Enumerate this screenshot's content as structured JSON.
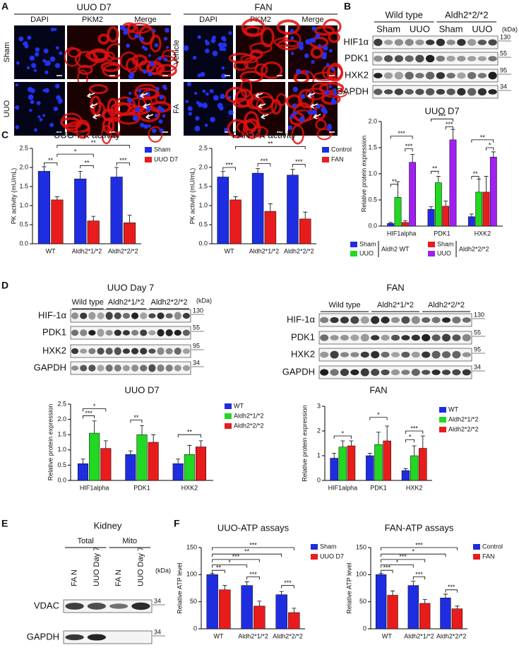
{
  "panel_labels": [
    "A",
    "B",
    "C",
    "D",
    "E",
    "F"
  ],
  "images": [
    {
      "title": "UUO D7",
      "columns": [
        "DAPI",
        "PKM2",
        "Merge"
      ],
      "rows": [
        "Sham",
        "UUO"
      ]
    },
    {
      "title": "FAN",
      "columns": [
        "DAPI",
        "PKM2",
        "Merge"
      ],
      "rows": [
        "Vehicle",
        "FA"
      ]
    }
  ],
  "blots": [
    {
      "groups": [
        {
          "name": "Wild type",
          "lanes": [
            "Sham",
            "UUO"
          ]
        },
        {
          "name": "Aldh2*2/*2",
          "lanes": [
            "Sham",
            "UUO"
          ]
        }
      ],
      "unit": "(kDa)",
      "rows": [
        {
          "label": "HIF1α",
          "kda": 130
        },
        {
          "label": "PDK1",
          "kda": 55
        },
        {
          "label": "HXK2",
          "kda": 95
        },
        {
          "label": "GAPDH",
          "kda": 34
        }
      ]
    },
    {
      "title": "UUO Day 7",
      "groups": [
        {
          "name": "Wild type"
        },
        {
          "name": "Aldh2*1/*2"
        },
        {
          "name": "Aldh2*2/*2"
        }
      ],
      "unit": "(kDa)",
      "rows": [
        {
          "label": "HIF-1α",
          "kda": 130
        },
        {
          "label": "PDK1",
          "kda": 55
        },
        {
          "label": "HXK2",
          "kda": 95
        },
        {
          "label": "GAPDH",
          "kda": 34
        }
      ]
    },
    {
      "title": "FAN",
      "groups": [
        {
          "name": "Wild type"
        },
        {
          "name": "Aldh2*1/*2"
        },
        {
          "name": "Aldh2*2/*2"
        }
      ],
      "rows": [
        {
          "label": "HIF-1α",
          "kda": 130
        },
        {
          "label": "PDK1",
          "kda": 55
        },
        {
          "label": "HXK2",
          "kda": 95
        },
        {
          "label": "GAPDH",
          "kda": 34
        }
      ]
    },
    {
      "title": "Kidney",
      "groups": [
        {
          "name": "Total",
          "lanes": [
            "FA N",
            "UUO Day 7"
          ]
        },
        {
          "name": "Mito",
          "lanes": [
            "FA N",
            "UUO Day 7"
          ]
        }
      ],
      "unit": "(kDa)",
      "rows": [
        {
          "label": "VDAC",
          "kda": 34
        },
        {
          "label": "GAPDH",
          "kda": 34
        }
      ]
    }
  ],
  "chart_data": [
    {
      "type": "bar",
      "title": "UUO D7",
      "y_label": "Relative protein expression",
      "categories": [
        "HIF1alpha",
        "PDK1",
        "HXK2"
      ],
      "series": [
        {
          "name": "Sham",
          "color": "#1f2de0",
          "values": [
            0.05,
            0.32,
            0.18
          ],
          "errors": [
            0.02,
            0.05,
            0.05
          ]
        },
        {
          "name": "UUO",
          "color": "#22d822",
          "values": [
            0.55,
            0.83,
            0.65
          ],
          "errors": [
            0.3,
            0.12,
            0.25
          ]
        },
        {
          "name": "Sham",
          "color": "#e81c1c",
          "values": [
            0.07,
            0.38,
            0.65
          ],
          "errors": [
            0.03,
            0.1,
            0.3
          ]
        },
        {
          "name": "UUO",
          "color": "#a020f0",
          "values": [
            1.22,
            1.65,
            1.32
          ],
          "errors": [
            0.15,
            0.2,
            0.1
          ]
        }
      ],
      "legend_groups": [
        "Aldh2 WT",
        "Aldh2*2/*2"
      ],
      "ylim": [
        0,
        2
      ],
      "yticks": [
        {
          "value": 0,
          "label": "0.0"
        },
        {
          "value": 0.5,
          "label": "0.5"
        },
        {
          "value": 1,
          "label": "1.0"
        },
        {
          "value": 1.5,
          "label": "1.5"
        },
        {
          "value": 2,
          "label": "2.0"
        }
      ],
      "significance": [
        "**",
        "***",
        "***",
        "**",
        "***",
        "***",
        "**",
        "**",
        "*"
      ]
    },
    {
      "type": "bar",
      "title": "UUO-PK activity",
      "y_label": "PK activity (mU/mL)",
      "categories": [
        "WT",
        "Aldh2*1/*2",
        "Aldh2*2/*2"
      ],
      "series": [
        {
          "name": "Sham",
          "color": "#1f2de0",
          "values": [
            1.9,
            1.7,
            1.75
          ],
          "errors": [
            0.12,
            0.2,
            0.25
          ]
        },
        {
          "name": "UUO D7",
          "color": "#e81c1c",
          "values": [
            1.15,
            0.6,
            0.55
          ],
          "errors": [
            0.08,
            0.12,
            0.2
          ]
        }
      ],
      "ylim": [
        0,
        2.5
      ],
      "yticks": [
        {
          "value": 0,
          "label": "0.0"
        },
        {
          "value": 0.5,
          "label": "0.5"
        },
        {
          "value": 1,
          "label": "1.0"
        },
        {
          "value": 1.5,
          "label": "1.5"
        },
        {
          "value": 2,
          "label": "2.0"
        },
        {
          "value": 2.5,
          "label": "2.5"
        }
      ],
      "significance": [
        "**",
        "*",
        "**",
        "**",
        "***"
      ]
    },
    {
      "type": "bar",
      "title": "FAN-PK activity",
      "y_label": "PK activity (mU/mL)",
      "categories": [
        "WT",
        "Aldh2*1/*2",
        "Aldh2*2/*2"
      ],
      "series": [
        {
          "name": "Control",
          "color": "#1f2de0",
          "values": [
            1.75,
            1.85,
            1.8
          ],
          "errors": [
            0.15,
            0.12,
            0.15
          ]
        },
        {
          "name": "FAN",
          "color": "#e81c1c",
          "values": [
            1.15,
            0.85,
            0.65
          ],
          "errors": [
            0.08,
            0.2,
            0.18
          ]
        }
      ],
      "ylim": [
        0,
        2.5
      ],
      "yticks": [
        {
          "value": 0,
          "label": "0.0"
        },
        {
          "value": 0.5,
          "label": "0.5"
        },
        {
          "value": 1,
          "label": "1.0"
        },
        {
          "value": 1.5,
          "label": "1.5"
        },
        {
          "value": 2,
          "label": "2.0"
        },
        {
          "value": 2.5,
          "label": "2.5"
        }
      ],
      "significance": [
        "***",
        "**",
        "***",
        "***"
      ]
    },
    {
      "type": "bar",
      "title": "UUO D7",
      "y_label": "Relative protein expression",
      "categories": [
        "HIF1alpha",
        "PDK1",
        "HXK2"
      ],
      "series": [
        {
          "name": "WT",
          "color": "#1f2de0",
          "values": [
            0.55,
            0.85,
            0.55
          ],
          "errors": [
            0.15,
            0.12,
            0.15
          ]
        },
        {
          "name": "Aldh2*1/*2",
          "color": "#22d822",
          "values": [
            1.55,
            1.5,
            0.85
          ],
          "errors": [
            0.4,
            0.3,
            0.3
          ]
        },
        {
          "name": "Aldh2*2/*2",
          "color": "#e81c1c",
          "values": [
            1.05,
            1.25,
            1.1
          ],
          "errors": [
            0.25,
            0.25,
            0.2
          ]
        }
      ],
      "ylim": [
        0,
        2.5
      ],
      "yticks": [
        {
          "value": 0,
          "label": "0.0"
        },
        {
          "value": 0.5,
          "label": "0.5"
        },
        {
          "value": 1,
          "label": "1.0"
        },
        {
          "value": 1.5,
          "label": "1.5"
        },
        {
          "value": 2,
          "label": "2.0"
        },
        {
          "value": 2.5,
          "label": "2.5"
        }
      ],
      "significance": [
        "*",
        "***",
        "**",
        "**"
      ]
    },
    {
      "type": "bar",
      "title": "FAN",
      "y_label": "Relative protein expression",
      "categories": [
        "HIF1alpha",
        "PDK1",
        "HXK2"
      ],
      "series": [
        {
          "name": "WT",
          "color": "#1f2de0",
          "values": [
            0.9,
            1.0,
            0.4
          ],
          "errors": [
            0.2,
            0.1,
            0.08
          ]
        },
        {
          "name": "Aldh2*1/*2",
          "color": "#22d822",
          "values": [
            1.35,
            1.45,
            1.0
          ],
          "errors": [
            0.25,
            0.5,
            0.4
          ]
        },
        {
          "name": "Aldh2*2/*2",
          "color": "#e81c1c",
          "values": [
            1.4,
            1.6,
            1.3
          ],
          "errors": [
            0.2,
            0.6,
            0.5
          ]
        }
      ],
      "ylim": [
        0,
        3
      ],
      "yticks": [
        0,
        1,
        2,
        3
      ],
      "significance": [
        "*",
        "*",
        "***",
        "*"
      ]
    },
    {
      "type": "bar",
      "title": "UUO-ATP assays",
      "y_label": "Relative ATP level",
      "categories": [
        "WT",
        "Aldh2*1/*2",
        "Aldh2*2/*2"
      ],
      "series": [
        {
          "name": "Sham",
          "color": "#1f2de0",
          "values": [
            100,
            80,
            63
          ],
          "errors": [
            2,
            7,
            6
          ]
        },
        {
          "name": "UUO D7",
          "color": "#e81c1c",
          "values": [
            72,
            42,
            30
          ],
          "errors": [
            8,
            9,
            8
          ]
        }
      ],
      "ylim": [
        0,
        150
      ],
      "yticks": [
        0,
        50,
        100,
        150
      ],
      "significance": [
        "**",
        "*",
        "***",
        "**",
        "***",
        "***",
        "***"
      ]
    },
    {
      "type": "bar",
      "title": "FAN-ATP assays",
      "y_label": "Relative ATP level",
      "categories": [
        "WT",
        "Aldh2*1/*2",
        "Aldh2*2/*2"
      ],
      "series": [
        {
          "name": "Control",
          "color": "#1f2de0",
          "values": [
            100,
            80,
            57
          ],
          "errors": [
            2,
            8,
            7
          ]
        },
        {
          "name": "FAN",
          "color": "#e81c1c",
          "values": [
            62,
            47,
            37
          ],
          "errors": [
            8,
            7,
            5
          ]
        }
      ],
      "ylim": [
        0,
        150
      ],
      "yticks": [
        0,
        50,
        100,
        150
      ],
      "significance": [
        "***",
        "*",
        "***",
        "*",
        "***",
        "***",
        "***"
      ]
    }
  ]
}
